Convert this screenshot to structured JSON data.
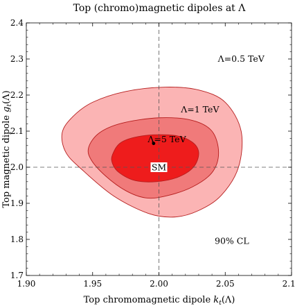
{
  "chart_data": {
    "type": "contour",
    "title": "Top (chromo)magnetic dipoles at Λ",
    "xlabel": {
      "main": "Top chromomagnetic dipole ",
      "sym": "k",
      "sub": "t",
      "tail": "(Λ)"
    },
    "ylabel": {
      "main": "Top magnetic dipole ",
      "sym": "g",
      "sub": "t",
      "tail": "(Λ)"
    },
    "xlim": [
      1.9,
      2.1
    ],
    "ylim": [
      1.7,
      2.4
    ],
    "xticks": [
      "1.90",
      "1.95",
      "2.00",
      "2.05",
      "2.10"
    ],
    "yticks": [
      "1.7",
      "1.8",
      "1.9",
      "2.0",
      "2.1",
      "2.2",
      "2.3",
      "2.4"
    ],
    "grid": false,
    "reference_lines": {
      "x": 2.0,
      "y": 2.0,
      "style": "dashed"
    },
    "confidence_level": "90% CL",
    "regions": [
      {
        "label": "Λ=0.5 TeV",
        "color": "#fbb4b4",
        "boundary": [
          [
            1.927,
            2.095
          ],
          [
            1.935,
            2.14
          ],
          [
            1.95,
            2.18
          ],
          [
            1.975,
            2.21
          ],
          [
            2.005,
            2.222
          ],
          [
            2.03,
            2.214
          ],
          [
            2.05,
            2.18
          ],
          [
            2.062,
            2.1
          ],
          [
            2.06,
            2.0
          ],
          [
            2.047,
            1.922
          ],
          [
            2.03,
            1.88
          ],
          [
            2.012,
            1.862
          ],
          [
            1.992,
            1.872
          ],
          [
            1.966,
            1.92
          ],
          [
            1.943,
            1.99
          ],
          [
            1.93,
            2.04
          ]
        ]
      },
      {
        "label": "Λ=1 TeV",
        "color": "#f07a7a",
        "boundary": [
          [
            1.947,
            2.055
          ],
          [
            1.955,
            2.095
          ],
          [
            1.972,
            2.122
          ],
          [
            2.0,
            2.137
          ],
          [
            2.025,
            2.13
          ],
          [
            2.04,
            2.1
          ],
          [
            2.045,
            2.04
          ],
          [
            2.04,
            1.985
          ],
          [
            2.025,
            1.945
          ],
          [
            2.005,
            1.92
          ],
          [
            1.99,
            1.915
          ],
          [
            1.975,
            1.935
          ],
          [
            1.96,
            1.975
          ],
          [
            1.949,
            2.02
          ]
        ]
      },
      {
        "label": "Λ=5 TeV",
        "color": "#ee1c1c",
        "boundary": [
          [
            1.965,
            2.035
          ],
          [
            1.972,
            2.07
          ],
          [
            1.99,
            2.088
          ],
          [
            2.012,
            2.088
          ],
          [
            2.025,
            2.07
          ],
          [
            2.03,
            2.04
          ],
          [
            2.026,
            2.0
          ],
          [
            2.014,
            1.972
          ],
          [
            1.998,
            1.96
          ],
          [
            1.982,
            1.963
          ],
          [
            1.97,
            1.985
          ],
          [
            1.965,
            2.01
          ]
        ]
      }
    ],
    "best_fit_point": {
      "x": 1.996,
      "y": 2.066
    },
    "sm_point": {
      "label": "SM",
      "x": 2.0,
      "y": 2.0
    },
    "annotations": [
      {
        "key": "lambda_05",
        "text": "Λ=0.5 TeV",
        "x": 2.062,
        "y": 2.3
      },
      {
        "key": "lambda_1",
        "text": "Λ=1 TeV",
        "x": 2.031,
        "y": 2.16
      },
      {
        "key": "lambda_5",
        "text": "Λ=5 TeV",
        "x": 2.006,
        "y": 2.077
      },
      {
        "key": "cl",
        "text": "90% CL",
        "x": 2.055,
        "y": 1.795
      }
    ]
  }
}
